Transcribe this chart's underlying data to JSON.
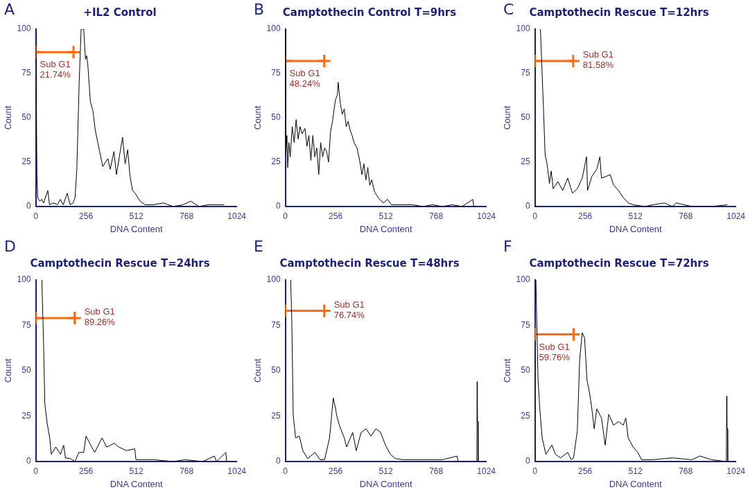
{
  "chart_data": [
    {
      "type": "line",
      "title": "+IL2 Control",
      "xlabel": "DNA Content",
      "ylabel": "Count",
      "xlim": [
        0,
        1024
      ],
      "xticks": [
        0,
        256,
        512,
        768,
        1024
      ],
      "ylim": [
        0,
        100
      ],
      "yticks": [
        0,
        25,
        50,
        75,
        100
      ],
      "marker": "none",
      "annotations": [
        "A",
        {
          "text": "Sub G1\n21.74%",
          "x": 0,
          "y": 87
        }
      ],
      "x": [
        0,
        6,
        10,
        20,
        30,
        40,
        61,
        70,
        90,
        110,
        125,
        140,
        160,
        175,
        190,
        200,
        209,
        221,
        231,
        244,
        253,
        259,
        265,
        278,
        291,
        303,
        316,
        329,
        341,
        367,
        379,
        398,
        411,
        430,
        442,
        455,
        468,
        480,
        493,
        506,
        531,
        556,
        600,
        650,
        700,
        750,
        790,
        830,
        880,
        960
      ],
      "series": [
        {
          "color": "#000000",
          "values": [
            100,
            17,
            5,
            3,
            4,
            2,
            9,
            1,
            2,
            1,
            4,
            1,
            7.5,
            1,
            2,
            5,
            21,
            70,
            100,
            100,
            83,
            85,
            80,
            59,
            54,
            43,
            36,
            29,
            22.5,
            27,
            21,
            31,
            18,
            31,
            39,
            24,
            32,
            17,
            9,
            7.5,
            3,
            1,
            1,
            2,
            0,
            1,
            3,
            0,
            1,
            1
          ]
        },
        {
          "color": "#ff6a13",
          "x": [
            0,
            192
          ],
          "values": [
            87,
            87
          ],
          "marker": "cross"
        }
      ]
    },
    {
      "type": "line",
      "title": "Camptothecin Control T=9hrs",
      "xlabel": "DNA Content",
      "ylabel": "Count",
      "xlim": [
        0,
        1024
      ],
      "xticks": [
        0,
        256,
        512,
        768,
        1024
      ],
      "ylim": [
        0,
        100
      ],
      "yticks": [
        0,
        25,
        50,
        75,
        100
      ],
      "marker": "none",
      "annotations": [
        "B",
        {
          "text": "Sub G1\n48.24%",
          "x": 0,
          "y": 82
        }
      ],
      "x": [
        0,
        1,
        3,
        8,
        12,
        18,
        25,
        35,
        45,
        55,
        65,
        75,
        85,
        100,
        110,
        120,
        130,
        140,
        150,
        160,
        170,
        180,
        190,
        200,
        210,
        220,
        230,
        240,
        255,
        265,
        269,
        280,
        290,
        300,
        310,
        320,
        330,
        340,
        350,
        365,
        380,
        390,
        400,
        410,
        420,
        430,
        440,
        455,
        480,
        500,
        520,
        540,
        600,
        650,
        700,
        750,
        800,
        850,
        900,
        955,
        960
      ],
      "series": [
        {
          "color": "#000000",
          "values": [
            100,
            64,
            30,
            40,
            22,
            36,
            28,
            45,
            36,
            49,
            38,
            45,
            41,
            44,
            34,
            40,
            26,
            40,
            28,
            33,
            18,
            36,
            28,
            33,
            31,
            25,
            42,
            48,
            60,
            63,
            70,
            58,
            52,
            55,
            45,
            48,
            43,
            40,
            36,
            33,
            25,
            18,
            24,
            15,
            22,
            12,
            15,
            8,
            4,
            2,
            4,
            1,
            1,
            1,
            0,
            1,
            0,
            1,
            0,
            4,
            0
          ]
        },
        {
          "color": "#ff6a13",
          "x": [
            0,
            198
          ],
          "values": [
            82,
            82
          ],
          "marker": "cross"
        }
      ]
    },
    {
      "type": "line",
      "title": "Camptothecin Rescue T=12hrs",
      "xlabel": "DNA Content",
      "ylabel": "Count",
      "xlim": [
        0,
        1024
      ],
      "xticks": [
        0,
        256,
        512,
        768,
        1024
      ],
      "ylim": [
        0,
        100
      ],
      "yticks": [
        0,
        25,
        50,
        75,
        100
      ],
      "marker": "none",
      "annotations": [
        "C",
        {
          "text": "Sub G1\n81.58%",
          "x": 195,
          "y": 82
        }
      ],
      "x": [
        28,
        43,
        52,
        62,
        74,
        83,
        93,
        117,
        142,
        167,
        191,
        216,
        241,
        263,
        268,
        290,
        315,
        331,
        339,
        364,
        383,
        401,
        426,
        450,
        475,
        500,
        560,
        600,
        660,
        700,
        720,
        800,
        900,
        980
      ],
      "series": [
        {
          "color": "#000000",
          "values": [
            100,
            57,
            29,
            24,
            13,
            20,
            10,
            14,
            9,
            16,
            7.5,
            10,
            16,
            28,
            9,
            17,
            21,
            28,
            16,
            17,
            18,
            12,
            9,
            5,
            2,
            1,
            0,
            1,
            2,
            0,
            2,
            0,
            0,
            1
          ]
        },
        {
          "color": "#ff6a13",
          "x": [
            0,
            195
          ],
          "values": [
            82,
            82
          ],
          "marker": "cross"
        }
      ]
    },
    {
      "type": "line",
      "title": "Camptothecin Rescue T=24hrs",
      "xlabel": "DNA Content",
      "ylabel": "Count",
      "xlim": [
        0,
        1024
      ],
      "xticks": [
        0,
        256,
        512,
        768,
        1024
      ],
      "ylim": [
        0,
        100
      ],
      "yticks": [
        0,
        25,
        50,
        75,
        100
      ],
      "marker": "none",
      "annotations": [
        "D",
        {
          "text": "Sub G1\n89.26%",
          "x": 198,
          "y": 79
        }
      ],
      "x": [
        31,
        40,
        46,
        58,
        71,
        79,
        102,
        126,
        142,
        151,
        176,
        200,
        219,
        244,
        256,
        275,
        300,
        337,
        361,
        399,
        423,
        461,
        504,
        510,
        600,
        700,
        760,
        850,
        910,
        920,
        968,
        972
      ],
      "series": [
        {
          "color": "#000000",
          "values": [
            100,
            64,
            32,
            21,
            13,
            4,
            8,
            4,
            9,
            2,
            1.6,
            0,
            5,
            5,
            14,
            10,
            5,
            13,
            8,
            10,
            8,
            6,
            7,
            1,
            1,
            0,
            1,
            0,
            3,
            0,
            5,
            0
          ]
        },
        {
          "color": "#ff6a13",
          "x": [
            0,
            198
          ],
          "values": [
            79,
            79
          ],
          "marker": "cross"
        }
      ]
    },
    {
      "type": "line",
      "title": "Camptothecin Rescue T=48hrs",
      "xlabel": "DNA Content",
      "ylabel": "Count",
      "xlim": [
        0,
        1024
      ],
      "xticks": [
        0,
        256,
        512,
        768,
        1024
      ],
      "ylim": [
        0,
        100
      ],
      "yticks": [
        0,
        25,
        50,
        75,
        100
      ],
      "marker": "none",
      "annotations": [
        "E",
        {
          "text": "Sub G1\n76.74%",
          "x": 198,
          "y": 83
        }
      ],
      "x": [
        27,
        33,
        40,
        52,
        71,
        89,
        114,
        151,
        176,
        200,
        225,
        244,
        256,
        262,
        275,
        300,
        312,
        343,
        361,
        386,
        411,
        436,
        461,
        485,
        510,
        535,
        560,
        600,
        700,
        800,
        874,
        880,
        975,
        977,
        978,
        981,
        982
      ],
      "series": [
        {
          "color": "#000000",
          "values": [
            100,
            77,
            26,
            13,
            14,
            6,
            1.6,
            5,
            1,
            1,
            13,
            35,
            29,
            25,
            20,
            13,
            8,
            16,
            6,
            16,
            18,
            14,
            18,
            16,
            9,
            4,
            1.6,
            1,
            1,
            1,
            3,
            0,
            0,
            44,
            22,
            22,
            0
          ]
        },
        {
          "color": "#ff6a13",
          "x": [
            0,
            198
          ],
          "values": [
            83,
            83
          ],
          "marker": "cross"
        }
      ]
    },
    {
      "type": "line",
      "title": "Camptothecin Rescue T=72hrs",
      "xlabel": "DNA Content",
      "ylabel": "Count",
      "xlim": [
        0,
        1024
      ],
      "xticks": [
        0,
        256,
        512,
        768,
        1024
      ],
      "ylim": [
        0,
        100
      ],
      "yticks": [
        0,
        25,
        50,
        75,
        100
      ],
      "marker": "none",
      "annotations": [
        "F",
        {
          "text": "Sub G1\n59.76%",
          "x": 0,
          "y": 70
        }
      ],
      "x": [
        5,
        16,
        25,
        37,
        56,
        86,
        105,
        130,
        167,
        185,
        197,
        216,
        228,
        241,
        253,
        265,
        278,
        290,
        302,
        315,
        339,
        358,
        376,
        401,
        426,
        450,
        463,
        475,
        500,
        524,
        543,
        600,
        700,
        800,
        840,
        900,
        975,
        977,
        978,
        981,
        982
      ],
      "series": [
        {
          "color": "#000000",
          "values": [
            100,
            45,
            29,
            13,
            4,
            9,
            4,
            2,
            5,
            1,
            2,
            17,
            56,
            71,
            68,
            45,
            38,
            29,
            18,
            29,
            24,
            9,
            26,
            20,
            22,
            20,
            24,
            13,
            8,
            5,
            1,
            1,
            2,
            1,
            3,
            1,
            0,
            36,
            18,
            18,
            0
          ]
        },
        {
          "color": "#ff6a13",
          "x": [
            0,
            197
          ],
          "values": [
            70,
            70
          ],
          "marker": "cross"
        }
      ]
    }
  ]
}
